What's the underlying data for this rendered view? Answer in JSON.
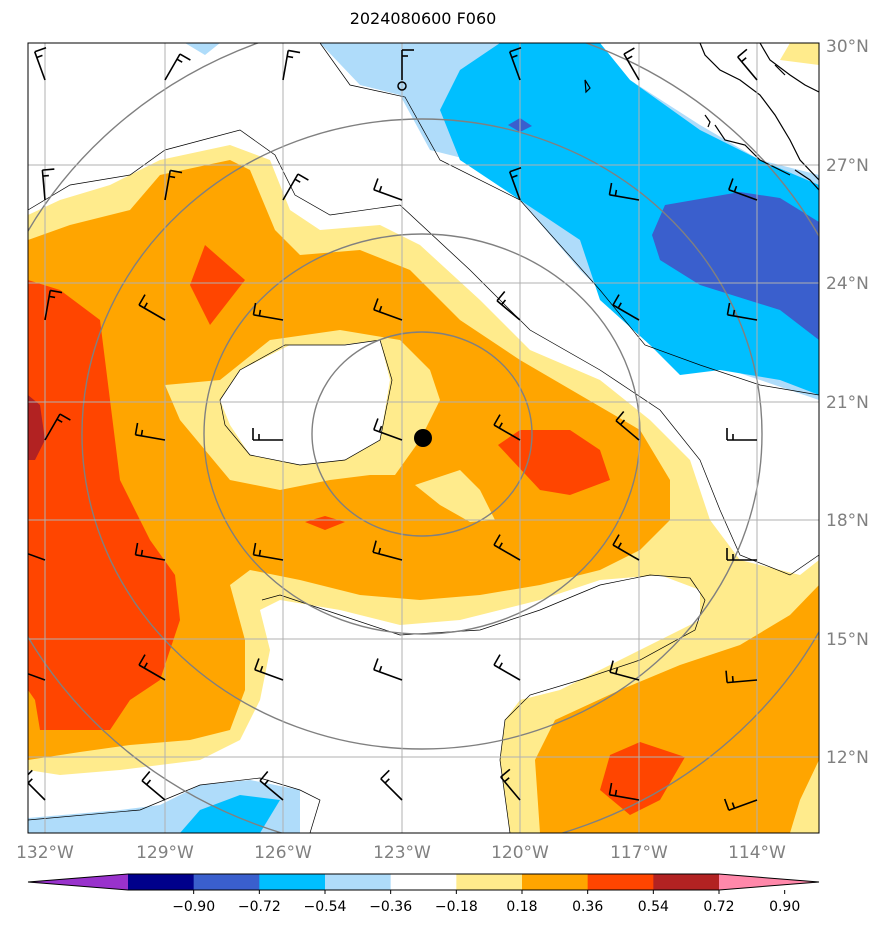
{
  "title": "2024080600 F060",
  "map": {
    "lon_labels": [
      "132°W",
      "129°W",
      "126°W",
      "123°W",
      "120°W",
      "117°W",
      "114°W"
    ],
    "lat_labels": [
      "30°N",
      "27°N",
      "24°N",
      "21°N",
      "18°N",
      "15°N",
      "12°N"
    ],
    "label_color": "#808080",
    "storm_marker": {
      "lon": -122.5,
      "lat": 20.1,
      "label": ""
    }
  },
  "colorbar": {
    "tick_labels": [
      "−0.90",
      "−0.72",
      "−0.54",
      "−0.36",
      "−0.18",
      "0.18",
      "0.36",
      "0.54",
      "0.72",
      "0.90"
    ],
    "colors": [
      "#9932cc",
      "#00008b",
      "#3a5fcd",
      "#00bfff",
      "#afdcfa",
      "#ffffff",
      "#ffeb8c",
      "#ffa500",
      "#ff4500",
      "#b22222",
      "#ff88aa"
    ]
  }
}
